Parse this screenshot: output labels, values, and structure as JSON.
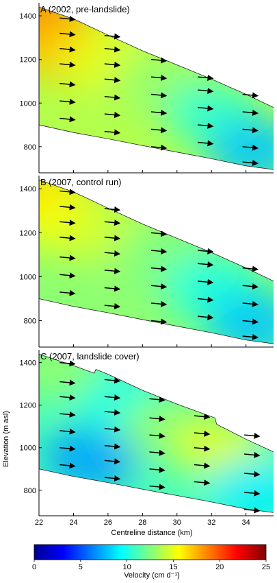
{
  "figure": {
    "ylabel": "Elevation (m asl)",
    "xlabel": "Centreline distance (km)",
    "colorbar": {
      "label": "Velocity (cm d⁻¹)",
      "min": 0,
      "max": 25,
      "ticks": [
        "0",
        "5",
        "10",
        "15",
        "20",
        "25"
      ],
      "colormap": [
        "#00008f",
        "#0000ff",
        "#0080ff",
        "#00ffff",
        "#80ff80",
        "#ffff00",
        "#ff8000",
        "#ff0000",
        "#800000"
      ]
    }
  },
  "chart_data": [
    {
      "type": "heatmap",
      "panel": "A",
      "title": "A (2002, pre-landslide)",
      "xlim": [
        22,
        35.6
      ],
      "ylim": [
        680,
        1460
      ],
      "yticks": [
        800,
        1000,
        1200,
        1400
      ],
      "surface": [
        [
          22,
          1440
        ],
        [
          24,
          1386
        ],
        [
          26,
          1312
        ],
        [
          28,
          1240
        ],
        [
          30,
          1175
        ],
        [
          32,
          1110
        ],
        [
          34,
          1040
        ],
        [
          35.6,
          980
        ]
      ],
      "bed": [
        [
          22,
          900
        ],
        [
          24,
          865
        ],
        [
          26,
          836
        ],
        [
          28,
          805
        ],
        [
          30,
          775
        ],
        [
          32,
          745
        ],
        [
          34,
          712
        ],
        [
          35.6,
          695
        ]
      ],
      "velocity_field": [
        {
          "x": 22.3,
          "y": 1380,
          "v": 19
        },
        {
          "x": 23.5,
          "y": 1250,
          "v": 17
        },
        {
          "x": 26,
          "y": 1200,
          "v": 15
        },
        {
          "x": 29,
          "y": 1100,
          "v": 13
        },
        {
          "x": 32,
          "y": 950,
          "v": 10.5
        },
        {
          "x": 34.5,
          "y": 780,
          "v": 8
        }
      ],
      "arrows_start": [
        [
          23.2,
          1390
        ],
        [
          23.2,
          1320
        ],
        [
          23.2,
          1250
        ],
        [
          23.2,
          1180
        ],
        [
          23.2,
          1090
        ],
        [
          23.2,
          1010
        ],
        [
          23.2,
          930
        ],
        [
          25.8,
          1310
        ],
        [
          25.8,
          1250
        ],
        [
          25.8,
          1180
        ],
        [
          25.8,
          1110
        ],
        [
          25.8,
          1030
        ],
        [
          25.8,
          950
        ],
        [
          25.8,
          870
        ],
        [
          28.5,
          1200
        ],
        [
          28.5,
          1120
        ],
        [
          28.5,
          1040
        ],
        [
          28.5,
          960
        ],
        [
          28.5,
          880
        ],
        [
          28.5,
          800
        ],
        [
          31.2,
          1120
        ],
        [
          31.2,
          1060
        ],
        [
          31.2,
          980
        ],
        [
          31.2,
          900
        ],
        [
          31.2,
          820
        ],
        [
          33.8,
          1040
        ],
        [
          33.8,
          960
        ],
        [
          33.8,
          880
        ],
        [
          33.8,
          800
        ],
        [
          33.8,
          730
        ]
      ]
    },
    {
      "type": "heatmap",
      "panel": "B",
      "title": "B (2007, control run)",
      "xlim": [
        22,
        35.6
      ],
      "ylim": [
        680,
        1460
      ],
      "yticks": [
        800,
        1000,
        1200,
        1400
      ],
      "surface": [
        [
          22,
          1440
        ],
        [
          24,
          1386
        ],
        [
          26,
          1312
        ],
        [
          28,
          1240
        ],
        [
          30,
          1175
        ],
        [
          32,
          1110
        ],
        [
          34,
          1040
        ],
        [
          35.6,
          980
        ]
      ],
      "bed": [
        [
          22,
          900
        ],
        [
          24,
          865
        ],
        [
          26,
          836
        ],
        [
          28,
          805
        ],
        [
          30,
          775
        ],
        [
          32,
          745
        ],
        [
          34,
          712
        ],
        [
          35.6,
          695
        ]
      ],
      "velocity_field": [
        {
          "x": 22.3,
          "y": 1380,
          "v": 16.5
        },
        {
          "x": 23.5,
          "y": 1250,
          "v": 15.5
        },
        {
          "x": 26,
          "y": 1200,
          "v": 14.5
        },
        {
          "x": 29,
          "y": 1100,
          "v": 12.5
        },
        {
          "x": 32,
          "y": 950,
          "v": 10
        },
        {
          "x": 34.5,
          "y": 780,
          "v": 8
        }
      ],
      "arrows_start": [
        [
          23.2,
          1390
        ],
        [
          23.2,
          1320
        ],
        [
          23.2,
          1250
        ],
        [
          23.2,
          1180
        ],
        [
          23.2,
          1090
        ],
        [
          23.2,
          1010
        ],
        [
          23.2,
          930
        ],
        [
          25.8,
          1310
        ],
        [
          25.8,
          1250
        ],
        [
          25.8,
          1180
        ],
        [
          25.8,
          1110
        ],
        [
          25.8,
          1030
        ],
        [
          25.8,
          950
        ],
        [
          25.8,
          870
        ],
        [
          28.5,
          1200
        ],
        [
          28.5,
          1120
        ],
        [
          28.5,
          1040
        ],
        [
          28.5,
          960
        ],
        [
          28.5,
          880
        ],
        [
          28.5,
          800
        ],
        [
          31.2,
          1120
        ],
        [
          31.2,
          1060
        ],
        [
          31.2,
          980
        ],
        [
          31.2,
          900
        ],
        [
          31.2,
          820
        ],
        [
          33.8,
          1040
        ],
        [
          33.8,
          960
        ],
        [
          33.8,
          880
        ],
        [
          33.8,
          800
        ],
        [
          33.8,
          730
        ]
      ]
    },
    {
      "type": "heatmap",
      "panel": "C",
      "title": "C (2007, landslide cover)",
      "xlim": [
        22,
        35.6
      ],
      "ylim": [
        680,
        1460
      ],
      "yticks": [
        800,
        1000,
        1200,
        1400
      ],
      "xticks": [
        22,
        24,
        26,
        28,
        30,
        32,
        34
      ],
      "surface": [
        [
          22,
          1440
        ],
        [
          24,
          1386
        ],
        [
          25.2,
          1350
        ],
        [
          25.3,
          1368
        ],
        [
          26,
          1345
        ],
        [
          28,
          1270
        ],
        [
          30,
          1205
        ],
        [
          32.2,
          1140
        ],
        [
          32.3,
          1110
        ],
        [
          34,
          1040
        ],
        [
          35.6,
          980
        ]
      ],
      "bed": [
        [
          22,
          900
        ],
        [
          24,
          865
        ],
        [
          26,
          836
        ],
        [
          28,
          805
        ],
        [
          30,
          775
        ],
        [
          32,
          745
        ],
        [
          34,
          712
        ],
        [
          35.6,
          695
        ]
      ],
      "velocity_field": [
        {
          "x": 23,
          "y": 1380,
          "v": 13
        },
        {
          "x": 25,
          "y": 950,
          "v": 7
        },
        {
          "x": 27,
          "y": 1200,
          "v": 10
        },
        {
          "x": 29.5,
          "y": 1100,
          "v": 13
        },
        {
          "x": 32.5,
          "y": 1000,
          "v": 15
        },
        {
          "x": 34.5,
          "y": 800,
          "v": 9
        }
      ],
      "arrows_start": [
        [
          23.2,
          1400
        ],
        [
          23.2,
          1310
        ],
        [
          23.2,
          1240
        ],
        [
          23.2,
          1160
        ],
        [
          23.2,
          1080
        ],
        [
          23.2,
          1000
        ],
        [
          23.2,
          920
        ],
        [
          25.8,
          1320
        ],
        [
          25.8,
          1240
        ],
        [
          25.8,
          1170
        ],
        [
          25.8,
          1090
        ],
        [
          25.8,
          1010
        ],
        [
          25.8,
          940
        ],
        [
          25.8,
          860
        ],
        [
          28.4,
          1230
        ],
        [
          28.4,
          1140
        ],
        [
          28.4,
          1060
        ],
        [
          28.4,
          980
        ],
        [
          28.4,
          900
        ],
        [
          28.4,
          820
        ],
        [
          31.0,
          1150
        ],
        [
          31.0,
          1070
        ],
        [
          31.0,
          1000
        ],
        [
          31.0,
          920
        ],
        [
          31.0,
          840
        ],
        [
          33.9,
          1060
        ],
        [
          33.9,
          970
        ],
        [
          33.9,
          880
        ],
        [
          33.9,
          790
        ],
        [
          33.9,
          710
        ]
      ]
    }
  ]
}
